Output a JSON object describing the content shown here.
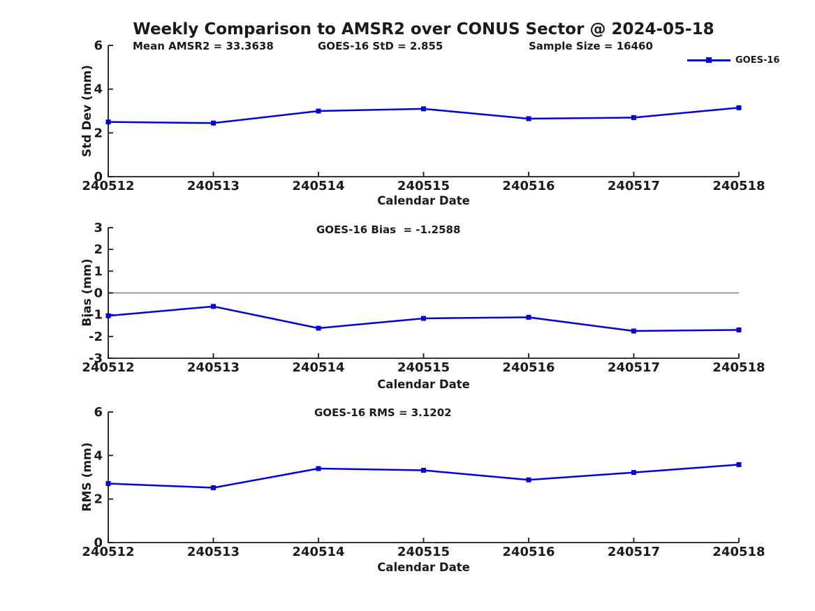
{
  "title": "Weekly Comparison to AMSR2 over CONUS Sector @ 2024-05-18",
  "legend": {
    "label": "GOES-16"
  },
  "colors": {
    "series": "#0000dd",
    "zero_line": "#7f7f7f",
    "axis": "#1a1a1a",
    "background": "#ffffff"
  },
  "chart_data": [
    {
      "type": "line",
      "ylabel": "Std Dev (mm)",
      "xlabel": "Calendar Date",
      "categories": [
        "240512",
        "240513",
        "240514",
        "240515",
        "240516",
        "240517",
        "240518"
      ],
      "series": [
        {
          "name": "GOES-16",
          "values": [
            2.5,
            2.45,
            3.0,
            3.1,
            2.65,
            2.7,
            3.15
          ]
        }
      ],
      "ylim": [
        0,
        6
      ],
      "yticks": [
        0,
        2,
        4,
        6
      ],
      "zero_line": false,
      "legend_position": "upper right",
      "grid": false,
      "annotations": [
        "Mean AMSR2 = 33.3638",
        "GOES-16 StD = 2.855",
        "Sample Size = 16460"
      ]
    },
    {
      "type": "line",
      "ylabel": "Bias (mm)",
      "xlabel": "Calendar Date",
      "categories": [
        "240512",
        "240513",
        "240514",
        "240515",
        "240516",
        "240517",
        "240518"
      ],
      "series": [
        {
          "name": "GOES-16",
          "values": [
            -1.05,
            -0.62,
            -1.62,
            -1.17,
            -1.12,
            -1.75,
            -1.7
          ]
        }
      ],
      "ylim": [
        -3,
        3
      ],
      "yticks": [
        -3,
        -2,
        -1,
        0,
        1,
        2,
        3
      ],
      "zero_line": true,
      "grid": false,
      "annotations": [
        "GOES-16 Bias  = -1.2588"
      ]
    },
    {
      "type": "line",
      "ylabel": "RMS (mm)",
      "xlabel": "Calendar Date",
      "categories": [
        "240512",
        "240513",
        "240514",
        "240515",
        "240516",
        "240517",
        "240518"
      ],
      "series": [
        {
          "name": "GOES-16",
          "values": [
            2.71,
            2.52,
            3.4,
            3.32,
            2.88,
            3.22,
            3.58
          ]
        }
      ],
      "ylim": [
        0,
        6
      ],
      "yticks": [
        0,
        2,
        4,
        6
      ],
      "zero_line": false,
      "grid": false,
      "annotations": [
        "GOES-16 RMS = 3.1202"
      ]
    }
  ]
}
